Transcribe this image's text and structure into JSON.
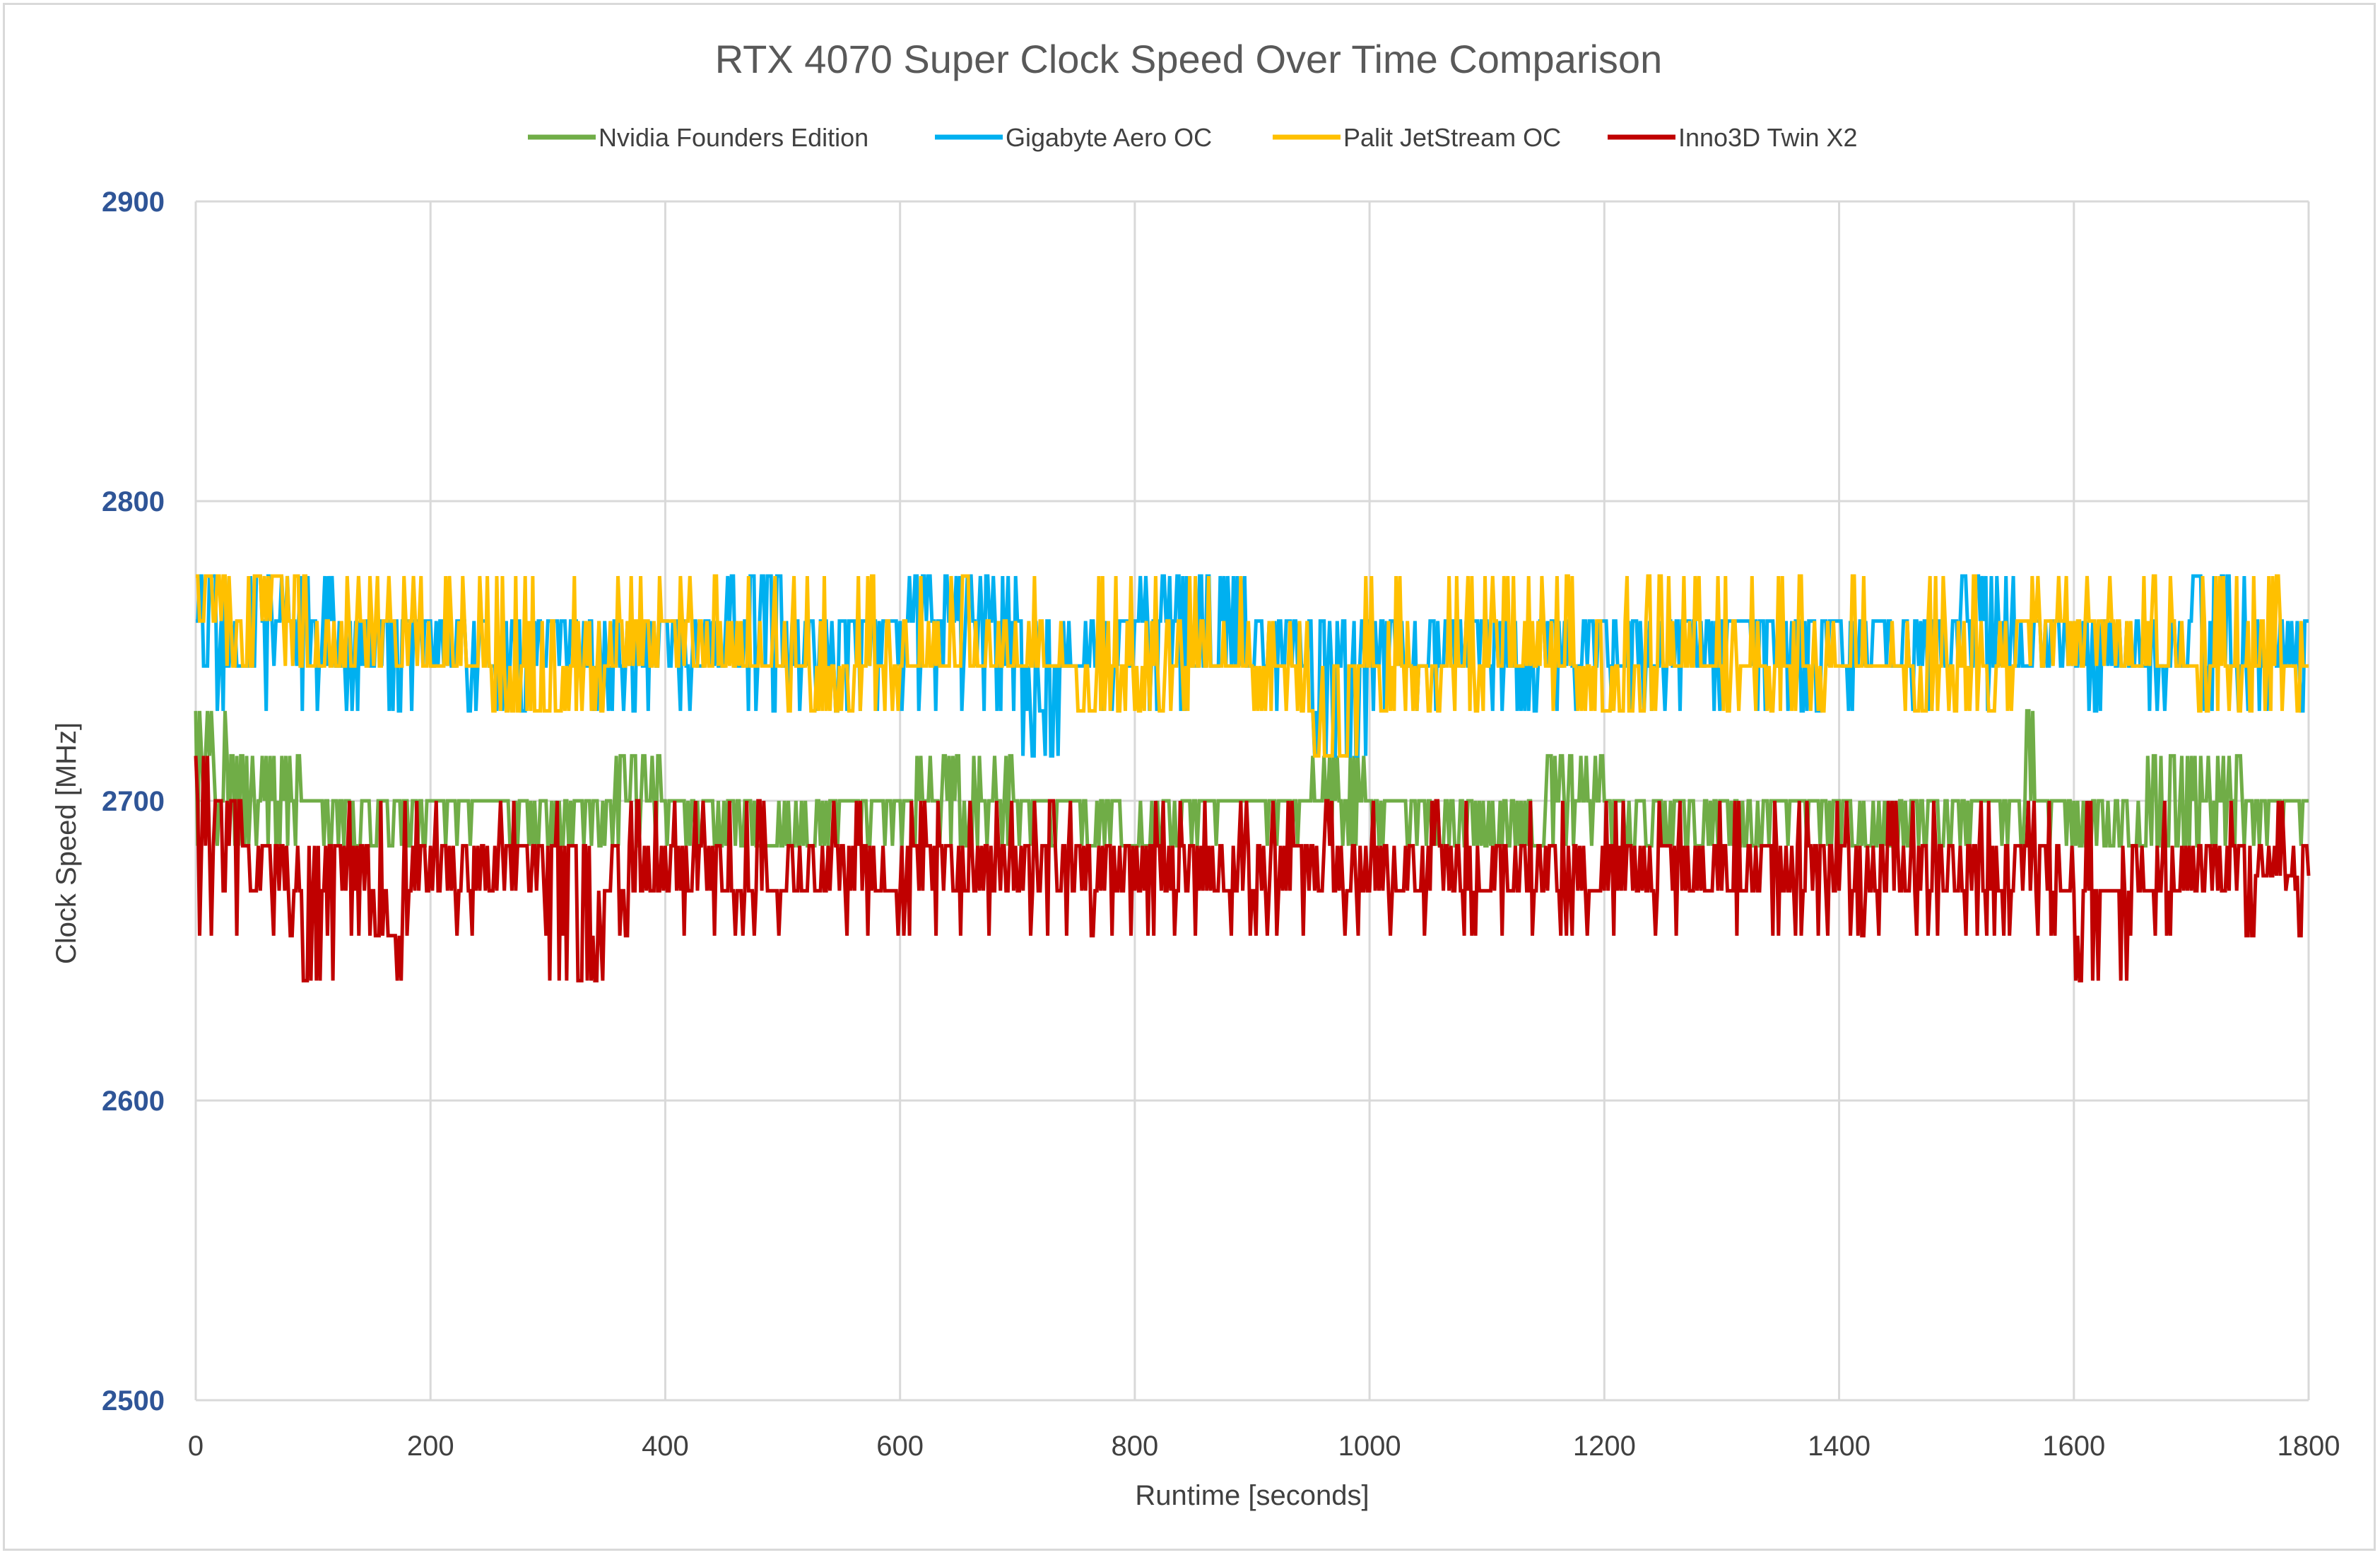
{
  "chart_data": {
    "type": "line",
    "title": "RTX 4070 Super Clock Speed Over Time Comparison",
    "xlabel": "Runtime [seconds]",
    "ylabel": "Clock Speed [MHz]",
    "xlim": [
      0,
      1800
    ],
    "ylim": [
      2500,
      2900
    ],
    "x_ticks": [
      "0",
      "200",
      "400",
      "600",
      "800",
      "1000",
      "1200",
      "1400",
      "1600",
      "1800"
    ],
    "y_ticks": [
      "2900",
      "2800",
      "2700",
      "2600",
      "2500"
    ],
    "grid": "vertical and horizontal",
    "legend_position": "top",
    "colors": {
      "grid": "#d9d9d9",
      "ytick": "#2f5597"
    },
    "series": [
      {
        "name": "Nvidia Founders Edition",
        "color": "#70ad47",
        "x": [
          0,
          5,
          10,
          15,
          20,
          25,
          30,
          35,
          40,
          50,
          60,
          70,
          80,
          90,
          100,
          120,
          140,
          160,
          180,
          200,
          250,
          300,
          350,
          365,
          400,
          450,
          500,
          550,
          600,
          645,
          700,
          750,
          800,
          850,
          900,
          950,
          990,
          1000,
          1050,
          1100,
          1150,
          1180,
          1200,
          1250,
          1300,
          1350,
          1400,
          1450,
          1500,
          1550,
          1560,
          1570,
          1600,
          1650,
          1700,
          1750,
          1800
        ],
        "y": [
          2730,
          2715,
          2730,
          2715,
          2700,
          2730,
          2715,
          2715,
          2715,
          2700,
          2715,
          2700,
          2715,
          2700,
          2700,
          2700,
          2685,
          2700,
          2700,
          2700,
          2700,
          2685,
          2700,
          2715,
          2700,
          2700,
          2685,
          2700,
          2700,
          2715,
          2700,
          2700,
          2685,
          2700,
          2700,
          2700,
          2715,
          2700,
          2700,
          2685,
          2700,
          2715,
          2700,
          2685,
          2700,
          2700,
          2700,
          2685,
          2700,
          2700,
          2730,
          2700,
          2700,
          2685,
          2715,
          2700,
          2700
        ]
      },
      {
        "name": "Gigabyte Aero OC",
        "color": "#00b0f0",
        "x": [
          0,
          5,
          10,
          15,
          20,
          25,
          30,
          40,
          55,
          70,
          110,
          130,
          160,
          200,
          250,
          300,
          350,
          400,
          450,
          482,
          500,
          550,
          600,
          640,
          700,
          730,
          750,
          800,
          836,
          900,
          950,
          990,
          1000,
          1050,
          1100,
          1150,
          1200,
          1250,
          1300,
          1350,
          1400,
          1450,
          1500,
          1525,
          1550,
          1600,
          1650,
          1700,
          1708,
          1750,
          1800
        ],
        "y": [
          2760,
          2775,
          2745,
          2775,
          2745,
          2775,
          2760,
          2745,
          2775,
          2760,
          2775,
          2745,
          2760,
          2760,
          2745,
          2760,
          2745,
          2760,
          2745,
          2775,
          2745,
          2760,
          2760,
          2775,
          2760,
          2715,
          2745,
          2760,
          2775,
          2745,
          2760,
          2715,
          2760,
          2745,
          2760,
          2745,
          2760,
          2745,
          2760,
          2760,
          2760,
          2745,
          2760,
          2775,
          2745,
          2760,
          2745,
          2760,
          2775,
          2745,
          2760
        ]
      },
      {
        "name": "Palit JetStream OC",
        "color": "#ffc000",
        "x": [
          0,
          5,
          10,
          15,
          20,
          30,
          40,
          50,
          60,
          70,
          100,
          150,
          200,
          250,
          300,
          350,
          400,
          450,
          500,
          550,
          600,
          650,
          700,
          750,
          800,
          850,
          900,
          950,
          965,
          1000,
          1050,
          1100,
          1150,
          1200,
          1250,
          1300,
          1350,
          1400,
          1450,
          1500,
          1550,
          1600,
          1650,
          1700,
          1750,
          1800
        ],
        "y": [
          2775,
          2760,
          2775,
          2760,
          2775,
          2760,
          2745,
          2775,
          2760,
          2775,
          2745,
          2760,
          2745,
          2745,
          2730,
          2745,
          2760,
          2745,
          2745,
          2730,
          2745,
          2745,
          2745,
          2745,
          2730,
          2745,
          2745,
          2730,
          2715,
          2745,
          2730,
          2745,
          2745,
          2730,
          2745,
          2745,
          2730,
          2745,
          2745,
          2730,
          2745,
          2760,
          2745,
          2745,
          2730,
          2745
        ]
      },
      {
        "name": "Inno3D Twin X2",
        "color": "#c00000",
        "x": [
          0,
          5,
          10,
          15,
          20,
          25,
          30,
          40,
          50,
          60,
          90,
          95,
          120,
          150,
          170,
          175,
          190,
          200,
          250,
          300,
          340,
          350,
          400,
          450,
          500,
          550,
          600,
          650,
          700,
          750,
          800,
          850,
          900,
          950,
          1000,
          1050,
          1100,
          1150,
          1200,
          1250,
          1300,
          1350,
          1400,
          1450,
          1500,
          1550,
          1600,
          1640,
          1650,
          1700,
          1750,
          1800
        ],
        "y": [
          2715,
          2685,
          2715,
          2685,
          2700,
          2670,
          2700,
          2685,
          2670,
          2685,
          2670,
          2640,
          2685,
          2670,
          2655,
          2640,
          2670,
          2685,
          2670,
          2685,
          2640,
          2670,
          2685,
          2670,
          2670,
          2685,
          2670,
          2685,
          2670,
          2685,
          2670,
          2685,
          2670,
          2685,
          2670,
          2685,
          2670,
          2685,
          2670,
          2685,
          2670,
          2685,
          2670,
          2685,
          2670,
          2685,
          2670,
          2640,
          2685,
          2670,
          2685,
          2675
        ]
      }
    ]
  }
}
